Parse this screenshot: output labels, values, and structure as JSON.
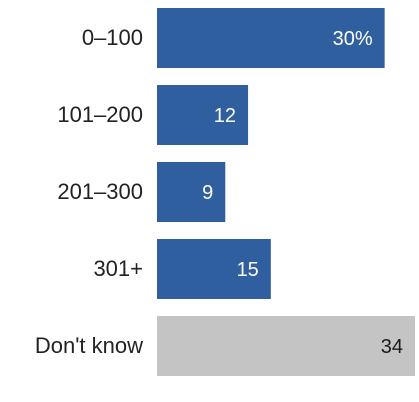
{
  "chart_data": {
    "type": "bar",
    "orientation": "horizontal",
    "categories": [
      "0–100",
      "101–200",
      "201–300",
      "301+",
      "Don't know"
    ],
    "values": [
      30,
      12,
      9,
      15,
      34
    ],
    "value_labels": [
      "30%",
      "12",
      "9",
      "15",
      "34"
    ],
    "xlim": [
      0,
      34
    ],
    "grid": false,
    "legend": "none",
    "colors": {
      "bar": "#2f5f9e",
      "bar_dont_know": "#c4c4c4",
      "label_on_bar": "#ffffff",
      "label_dont_know": "#1a1a1a"
    }
  }
}
